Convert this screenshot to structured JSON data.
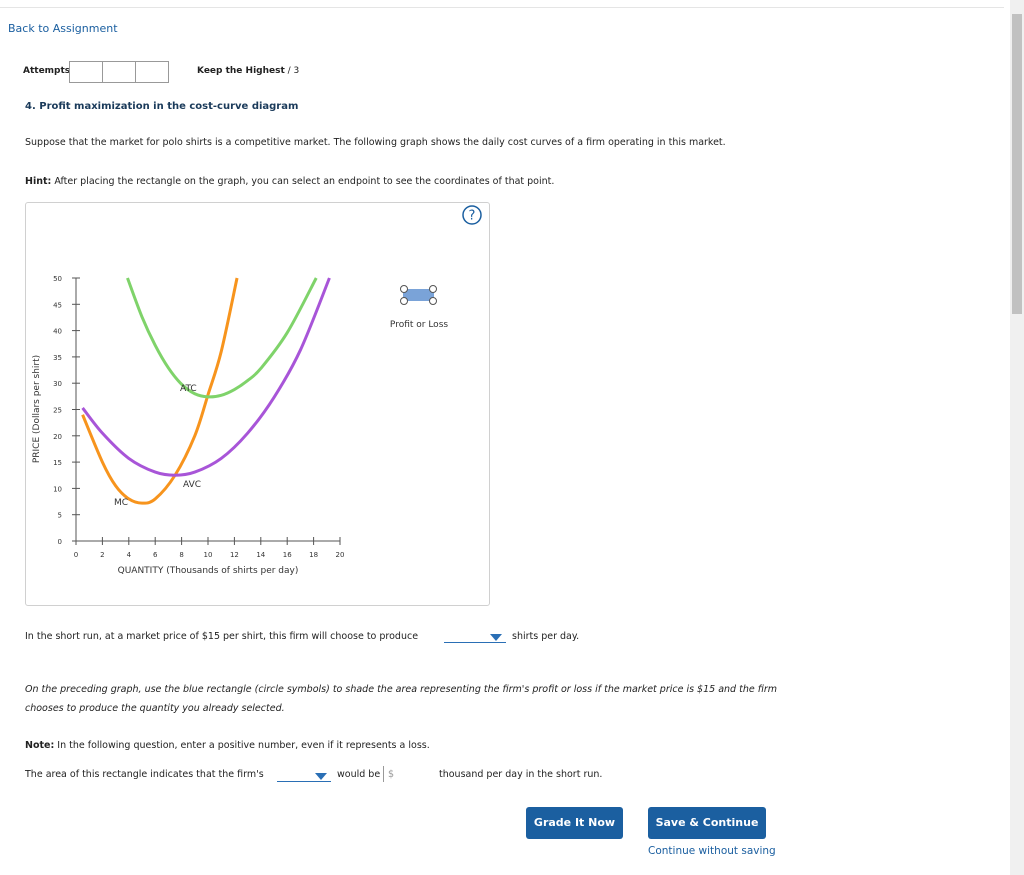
{
  "nav": {
    "back": "Back to Assignment"
  },
  "attempts": {
    "label": "Attempts",
    "policy": "Keep the Highest",
    "max": "/ 3"
  },
  "question": {
    "title": "4. Profit maximization in the cost-curve diagram",
    "intro": "Suppose that the market for polo shirts is a competitive market. The following graph shows the daily cost curves of a firm operating in this market.",
    "hint_label": "Hint:",
    "hint": "After placing the rectangle on the graph, you can select an endpoint to see the coordinates of that point."
  },
  "graph": {
    "help": "?",
    "ylabel": "PRICE (Dollars per shirt)",
    "xlabel": "QUANTITY (Thousands of shirts per day)",
    "xlim": [
      0,
      20
    ],
    "ylim": [
      0,
      50
    ],
    "xticks": [
      0,
      2,
      4,
      6,
      8,
      10,
      12,
      14,
      16,
      18,
      20
    ],
    "yticks": [
      0,
      5,
      10,
      15,
      20,
      25,
      30,
      35,
      40,
      45,
      50
    ],
    "curves": [
      {
        "name": "MC",
        "color": "#f7941d",
        "x": [
          0.5,
          2,
          3,
          4,
          5,
          6,
          7.5,
          9,
          10,
          11,
          12.2
        ],
        "values": [
          24,
          15,
          10.5,
          8,
          7.2,
          8,
          12.5,
          20,
          27.8,
          36,
          50
        ]
      },
      {
        "name": "AVC",
        "color": "#a855d8",
        "x": [
          0.5,
          2,
          4,
          6,
          7.5,
          9,
          11,
          13,
          15,
          17,
          19.2
        ],
        "values": [
          25.3,
          20.5,
          15.7,
          13.1,
          12.5,
          13.1,
          15.7,
          20.5,
          27.3,
          36.3,
          50
        ]
      },
      {
        "name": "ATC",
        "color": "#7fd36a",
        "x": [
          3.9,
          5,
          6,
          7,
          8,
          9,
          10,
          11,
          12,
          13,
          14,
          16,
          18.2
        ],
        "values": [
          50,
          42.6,
          37.2,
          32.9,
          29.8,
          28,
          27.4,
          27.7,
          28.8,
          30.5,
          32.8,
          39.6,
          50
        ]
      }
    ],
    "tool": "Profit or Loss"
  },
  "q1": {
    "before": "In the short run, at a market price of $15 per shirt, this firm will choose to produce",
    "after": "shirts per day."
  },
  "instruction": "On the preceding graph, use the blue rectangle (circle symbols) to shade the area representing the firm's profit or loss if the market price is $15 and the firm chooses to produce the quantity you already selected.",
  "note": {
    "label": "Note:",
    "text": "In the following question, enter a positive number, even if it represents a loss."
  },
  "q2": {
    "before": "The area of this rectangle indicates that the firm's",
    "middle": "would be",
    "currency": "$",
    "after": "thousand per day in the short run."
  },
  "buttons": {
    "grade": "Grade It Now",
    "save": "Save & Continue",
    "skip": "Continue without saving"
  }
}
